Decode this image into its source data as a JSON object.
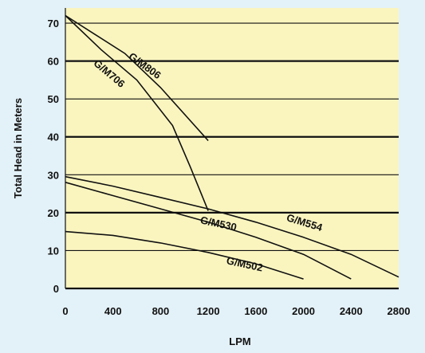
{
  "chart_data": {
    "type": "line",
    "xlabel": "LPM",
    "ylabel": "Total Head in Meters",
    "xlim": [
      0,
      2800
    ],
    "ylim": [
      0,
      74
    ],
    "x_ticks": [
      0,
      400,
      800,
      1200,
      1600,
      2000,
      2400,
      2800
    ],
    "y_ticks": [
      0,
      10,
      20,
      30,
      40,
      50,
      60,
      70
    ],
    "grid": "horizontal",
    "plot_background": "#faf5bf",
    "page_background": "#e3f1f8",
    "series": [
      {
        "name": "G/M806",
        "x": [
          0,
          250,
          500,
          800,
          1200
        ],
        "y": [
          72,
          67,
          62,
          53,
          39
        ]
      },
      {
        "name": "G/M706",
        "x": [
          0,
          300,
          600,
          900,
          1050,
          1200
        ],
        "y": [
          72,
          63,
          55,
          43,
          32,
          20.5
        ]
      },
      {
        "name": "G/M554",
        "x": [
          0,
          400,
          800,
          1200,
          1600,
          2000,
          2400,
          2800
        ],
        "y": [
          29.5,
          27,
          24,
          21,
          17.5,
          13.5,
          9,
          3
        ]
      },
      {
        "name": "G/M530",
        "x": [
          0,
          400,
          800,
          1200,
          1600,
          2000,
          2400
        ],
        "y": [
          28,
          24.5,
          21,
          17.5,
          13.5,
          9,
          2.5
        ]
      },
      {
        "name": "G/M502",
        "x": [
          0,
          400,
          800,
          1200,
          1600,
          2000
        ],
        "y": [
          15,
          14,
          12,
          9.5,
          6.5,
          2.5
        ]
      }
    ]
  }
}
